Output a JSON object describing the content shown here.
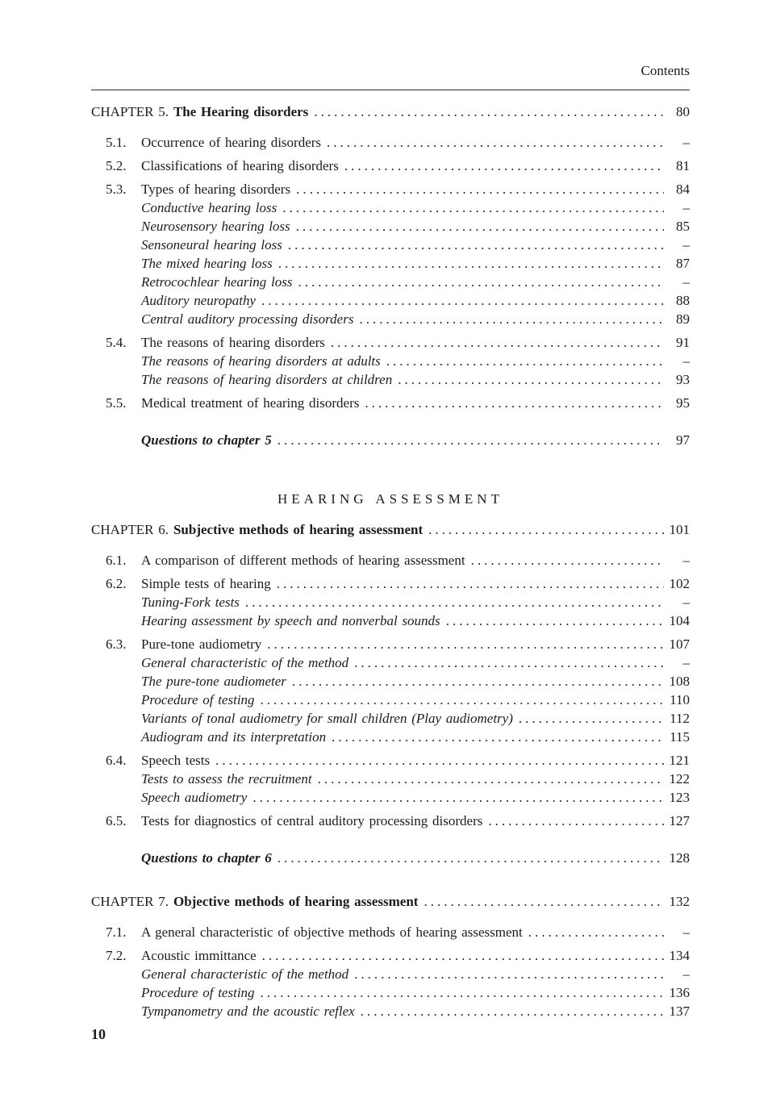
{
  "header": {
    "label": "Contents"
  },
  "toc": {
    "rows": [
      {
        "kind": "chapter",
        "num": "CHAPTER 5.",
        "title": "The Hearing disorders",
        "page": "80"
      },
      {
        "kind": "entry",
        "num": "5.1.",
        "title": "Occurrence of hearing disorders",
        "page": "–"
      },
      {
        "kind": "entry",
        "num": "5.2.",
        "title": "Classifications of hearing disorders",
        "page": "81"
      },
      {
        "kind": "entry",
        "num": "5.3.",
        "title": "Types of hearing disorders",
        "page": "84"
      },
      {
        "kind": "sub",
        "title": "Conductive hearing loss",
        "page": "–"
      },
      {
        "kind": "sub",
        "title": "Neurosensory hearing loss",
        "page": "85"
      },
      {
        "kind": "sub",
        "title": "Sensoneural hearing loss",
        "page": "–"
      },
      {
        "kind": "sub",
        "title": "The mixed hearing loss",
        "page": "87"
      },
      {
        "kind": "sub",
        "title": "Retrocochlear hearing loss",
        "page": "–"
      },
      {
        "kind": "sub",
        "title": "Auditory neuropathy",
        "page": "88"
      },
      {
        "kind": "sub",
        "title": "Central auditory processing disorders",
        "page": "89"
      },
      {
        "kind": "entry",
        "num": "5.4.",
        "title": "The reasons of hearing disorders",
        "page": "91"
      },
      {
        "kind": "sub",
        "title": "The reasons of hearing disorders at adults",
        "page": "–"
      },
      {
        "kind": "sub",
        "title": "The reasons of hearing disorders at children",
        "page": "93"
      },
      {
        "kind": "entry",
        "num": "5.5.",
        "title": "Medical treatment of hearing disorders",
        "page": "95"
      },
      {
        "kind": "questions",
        "title": "Questions to chapter 5",
        "page": "97"
      },
      {
        "kind": "part",
        "title": "HEARING ASSESSMENT"
      },
      {
        "kind": "chapter",
        "num": "CHAPTER 6.",
        "title": "Subjective methods of hearing assessment",
        "page": "101"
      },
      {
        "kind": "entry",
        "num": "6.1.",
        "title": "A comparison of different methods of hearing assessment",
        "page": "–"
      },
      {
        "kind": "entry",
        "num": "6.2.",
        "title": "Simple tests of hearing",
        "page": "102"
      },
      {
        "kind": "sub",
        "title": "Tuning-Fork tests",
        "page": "–"
      },
      {
        "kind": "sub",
        "title": "Hearing assessment by speech and nonverbal sounds",
        "page": "104"
      },
      {
        "kind": "entry",
        "num": "6.3.",
        "title": "Pure-tone audiometry",
        "page": "107"
      },
      {
        "kind": "sub",
        "title": "General characteristic of the method",
        "page": "–"
      },
      {
        "kind": "sub",
        "title": "The pure-tone audiometer",
        "page": "108"
      },
      {
        "kind": "sub",
        "title": "Procedure of testing",
        "page": "110"
      },
      {
        "kind": "sub",
        "title": "Variants of tonal audiometry for small children (Play audiometry)",
        "page": "112"
      },
      {
        "kind": "sub",
        "title": "Audiogram and its interpretation",
        "page": "115"
      },
      {
        "kind": "entry",
        "num": "6.4.",
        "title": "Speech tests",
        "page": "121"
      },
      {
        "kind": "sub",
        "title": "Tests to assess the recruitment",
        "page": "122"
      },
      {
        "kind": "sub",
        "title": "Speech audiometry",
        "page": "123"
      },
      {
        "kind": "entry",
        "num": "6.5.",
        "title": "Tests for diagnostics of central auditory processing disorders",
        "page": "127"
      },
      {
        "kind": "questions",
        "title": "Questions to chapter 6",
        "page": "128"
      },
      {
        "kind": "chapter",
        "num": "CHAPTER 7.",
        "title": "Objective methods of hearing assessment",
        "page": "132"
      },
      {
        "kind": "entry",
        "num": "7.1.",
        "title": "A general characteristic of objective methods of hearing assessment",
        "page": "–"
      },
      {
        "kind": "entry",
        "num": "7.2.",
        "title": "Acoustic immittance",
        "page": "134"
      },
      {
        "kind": "sub",
        "title": "General characteristic of the method",
        "page": "–"
      },
      {
        "kind": "sub",
        "title": "Procedure of testing",
        "page": "136"
      },
      {
        "kind": "sub",
        "title": "Tympanometry and the acoustic reflex",
        "page": "137"
      }
    ]
  },
  "footer": {
    "page_number": "10"
  }
}
